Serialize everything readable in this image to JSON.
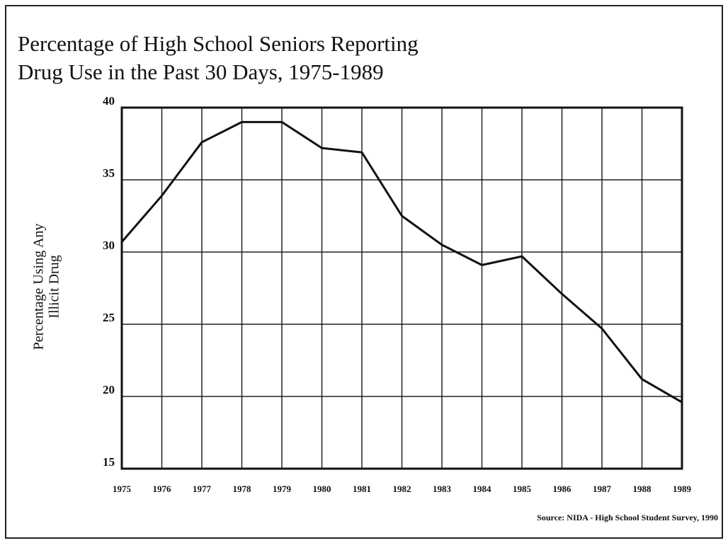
{
  "chart_data": {
    "type": "line",
    "title": [
      "Percentage of High School Seniors Reporting",
      "Drug Use in the Past 30 Days, 1975-1989"
    ],
    "y_label": [
      "Percentage Using Any",
      "Illicit Drug"
    ],
    "source": "Source:  NIDA - High School Student Survey, 1990",
    "categories": [
      "1975",
      "1976",
      "1977",
      "1978",
      "1979",
      "1980",
      "1981",
      "1982",
      "1983",
      "1984",
      "1985",
      "1986",
      "1987",
      "1988",
      "1989"
    ],
    "values": [
      30.7,
      33.9,
      37.6,
      39,
      39,
      37.2,
      36.9,
      32.5,
      30.5,
      29.1,
      29.7,
      27.1,
      24.7,
      21.2,
      19.6
    ],
    "color": "#111111",
    "ylim": [
      15,
      40
    ],
    "yticks": [
      15,
      20,
      25,
      30,
      35,
      40
    ],
    "grid": true
  }
}
